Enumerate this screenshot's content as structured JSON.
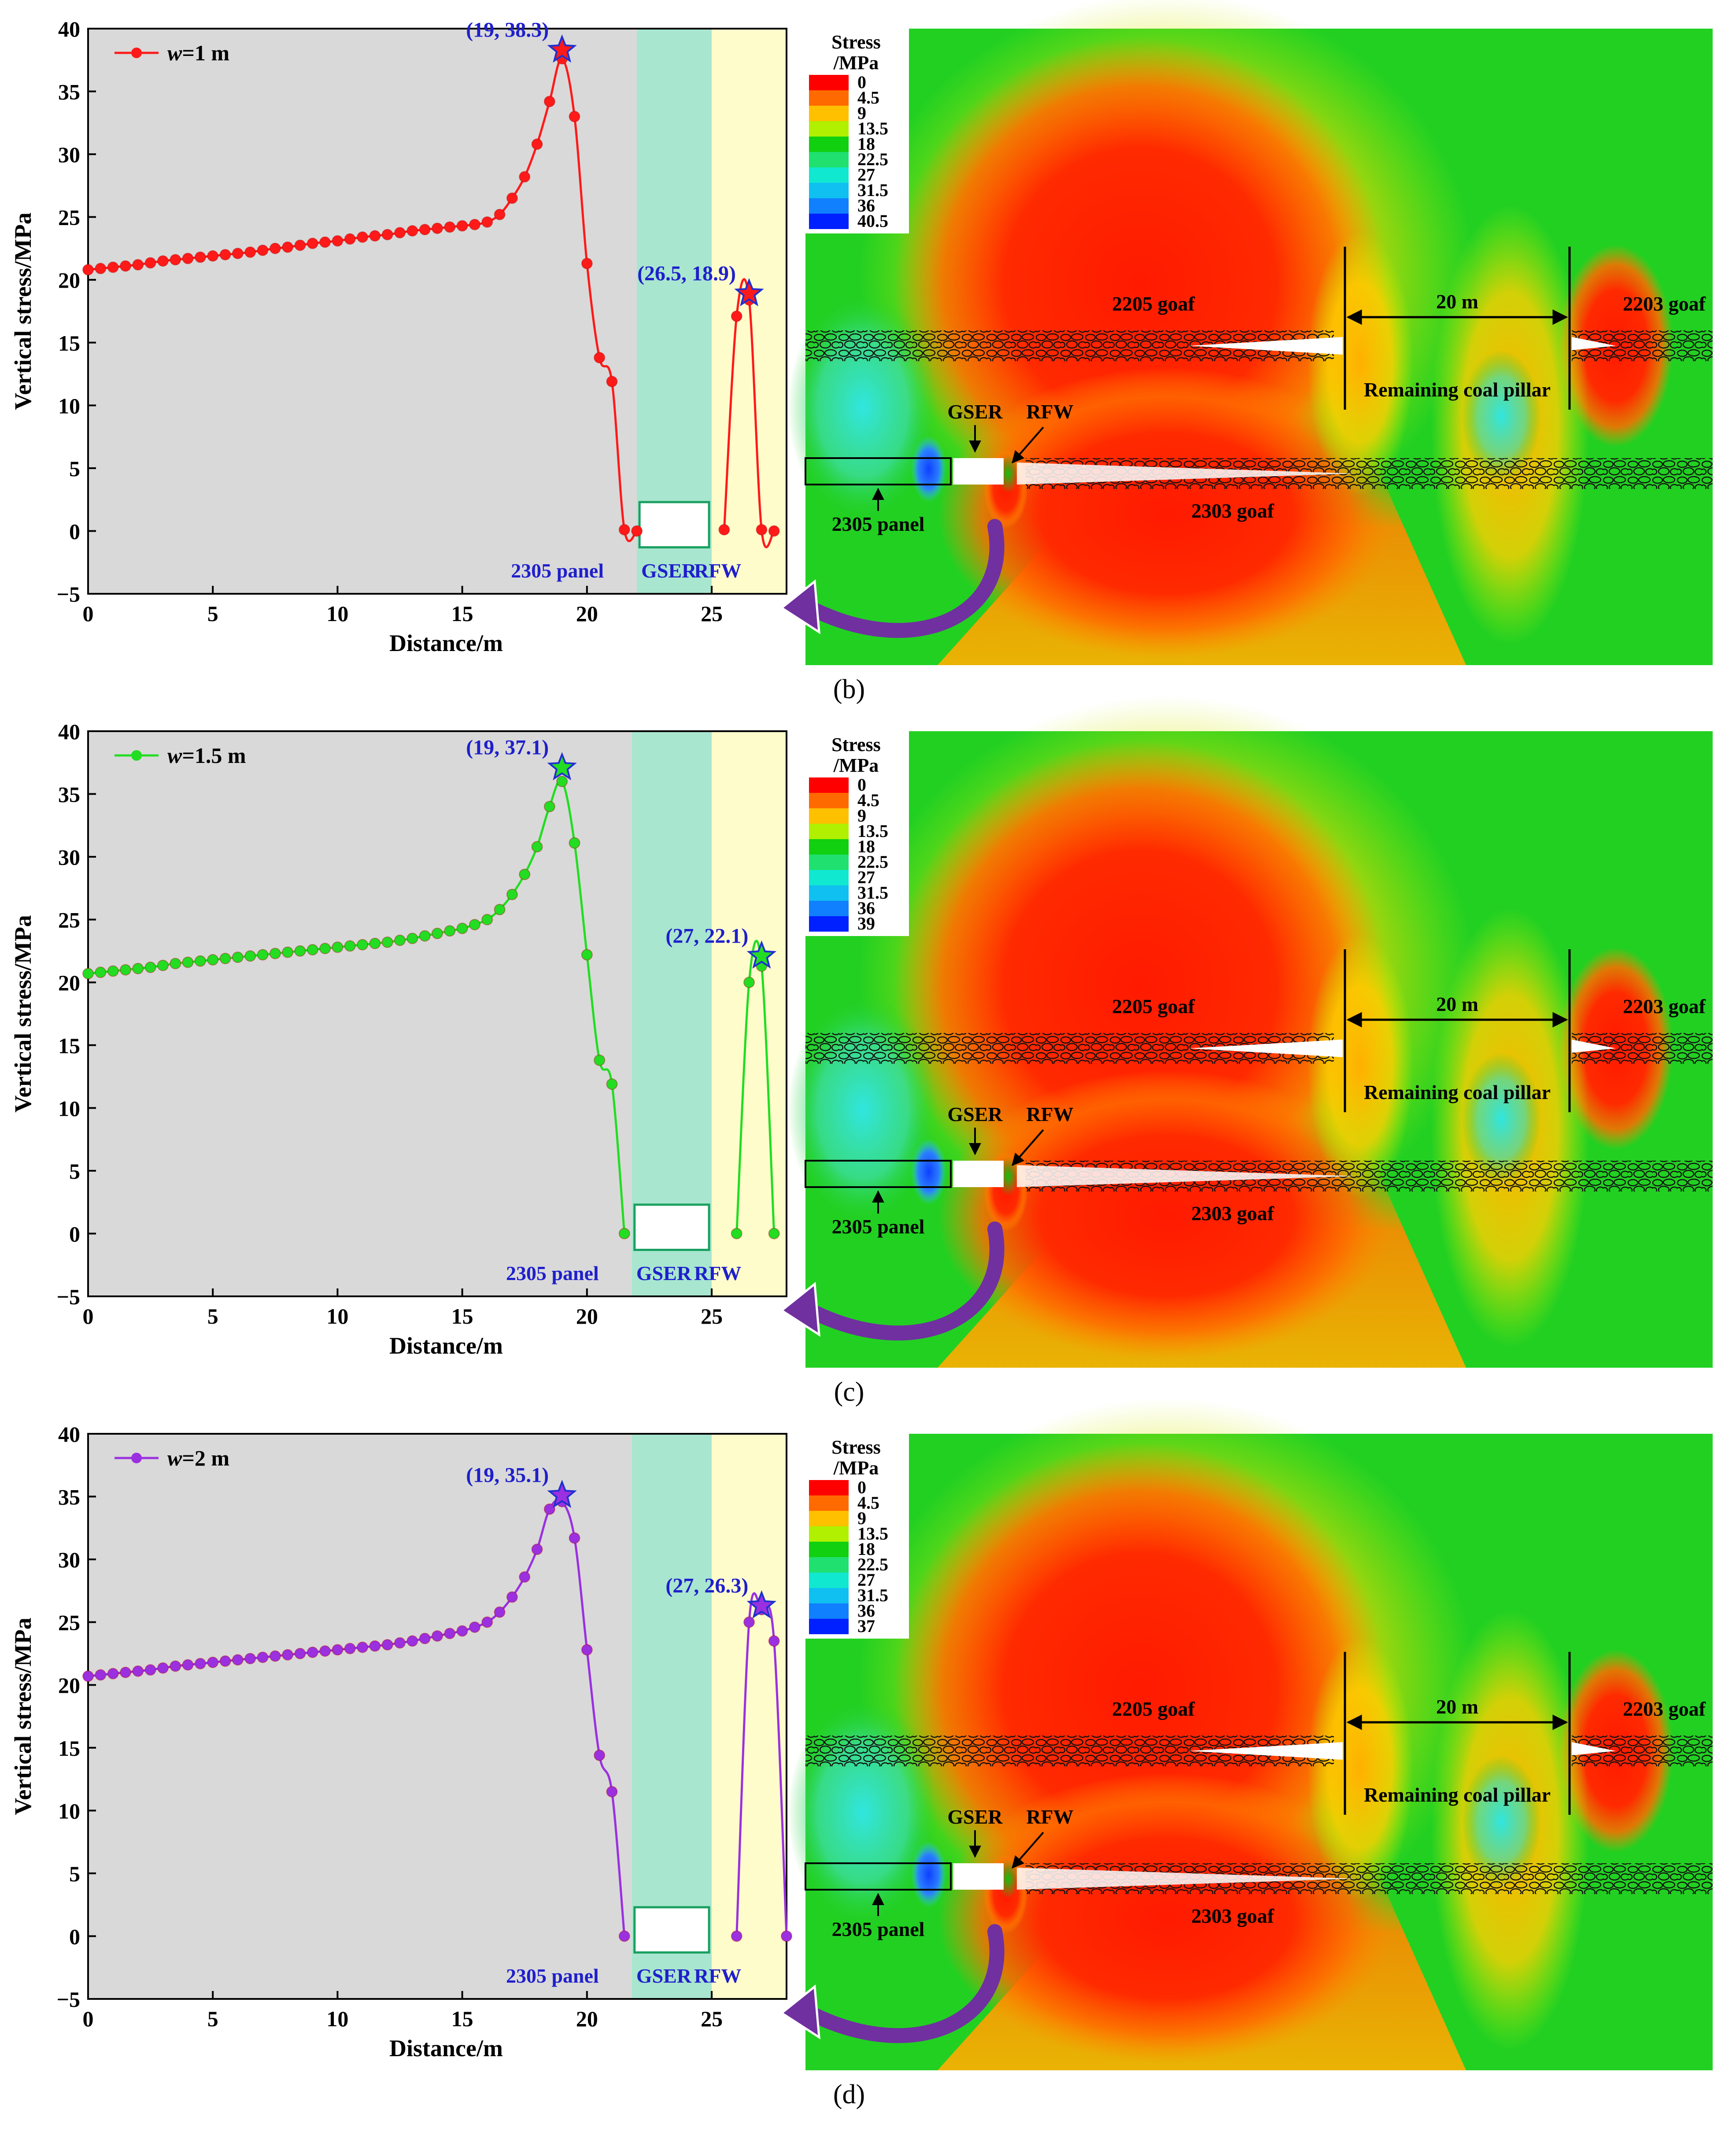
{
  "figure": {
    "ylabel": "Vertical stress/MPa",
    "xlabel": "Distance/m",
    "region_labels": {
      "panel": "2305 panel",
      "gser": "GSER",
      "rfw": "RFW"
    },
    "map_labels": {
      "stress_title_1": "Stress",
      "stress_title_2": "/MPa",
      "goaf_2205": "2205 goaf",
      "goaf_2203": "2203 goaf",
      "goaf_2303": "2303 goaf",
      "pillar_width": "20 m",
      "pillar": "Remaining coal pillar",
      "gser": "GSER",
      "rfw": "RFW",
      "panel": "2305 panel"
    }
  },
  "colors": {
    "gray_zone": "#d9d9d9",
    "gser_zone": "#a8e6cf",
    "rfw_zone": "#fffccc",
    "label_blue": "#1f1fcc",
    "arrow_purple": "#7030a0"
  },
  "chart_data": [
    {
      "type": "line",
      "panel_label": "(b)",
      "legend": "w=1 m",
      "legend_var": "w",
      "legend_rest": "=1 m",
      "color": "#ff1a1a",
      "xlim": [
        0,
        28
      ],
      "ylim": [
        -5,
        40
      ],
      "xticks": [
        0,
        5,
        10,
        15,
        20,
        25
      ],
      "yticks": [
        -5,
        0,
        5,
        10,
        15,
        20,
        25,
        30,
        35,
        40
      ],
      "zones": [
        [
          0,
          22
        ],
        [
          22,
          25
        ],
        [
          25,
          28
        ]
      ],
      "x": [
        0,
        0.5,
        1,
        1.5,
        2,
        2.5,
        3,
        3.5,
        4,
        4.5,
        5,
        5.5,
        6,
        6.5,
        7,
        7.5,
        8,
        8.5,
        9,
        9.5,
        10,
        10.5,
        11,
        11.5,
        12,
        12.5,
        13,
        13.5,
        14,
        14.5,
        15,
        15.5,
        16,
        16.5,
        17,
        17.5,
        18,
        18.5,
        19,
        19.5,
        20,
        20.5,
        21,
        21.5,
        22,
        25.5,
        26,
        26.5,
        27,
        27.5
      ],
      "y": [
        20.8,
        20.9,
        21.0,
        21.1,
        21.2,
        21.35,
        21.5,
        21.6,
        21.7,
        21.8,
        21.9,
        22.0,
        22.1,
        22.2,
        22.35,
        22.5,
        22.6,
        22.75,
        22.9,
        23.0,
        23.1,
        23.25,
        23.4,
        23.5,
        23.6,
        23.75,
        23.9,
        24.0,
        24.1,
        24.2,
        24.3,
        24.4,
        24.6,
        25.2,
        26.5,
        28.2,
        30.8,
        34.2,
        37.6,
        33.0,
        21.3,
        13.8,
        11.9,
        0.1,
        0.0,
        0.1,
        17.1,
        18.4,
        0.1,
        0.0
      ],
      "peaks": [
        {
          "label": "(19, 38.3)",
          "x": 19,
          "y": 38.3
        },
        {
          "label": "(26.5, 18.9)",
          "x": 26.5,
          "y": 18.9
        }
      ],
      "colorbar": [
        "0",
        "4.5",
        "9",
        "13.5",
        "18",
        "22.5",
        "27",
        "31.5",
        "36",
        "40.5"
      ]
    },
    {
      "type": "line",
      "panel_label": "(c)",
      "legend": "w=1.5 m",
      "legend_var": "w",
      "legend_rest": "=1.5 m",
      "color": "#22dd22",
      "xlim": [
        0,
        28
      ],
      "ylim": [
        -5,
        40
      ],
      "xticks": [
        0,
        5,
        10,
        15,
        20,
        25
      ],
      "yticks": [
        -5,
        0,
        5,
        10,
        15,
        20,
        25,
        30,
        35,
        40
      ],
      "zones": [
        [
          0,
          21.8
        ],
        [
          21.8,
          25
        ],
        [
          25,
          28
        ]
      ],
      "x": [
        0,
        0.5,
        1,
        1.5,
        2,
        2.5,
        3,
        3.5,
        4,
        4.5,
        5,
        5.5,
        6,
        6.5,
        7,
        7.5,
        8,
        8.5,
        9,
        9.5,
        10,
        10.5,
        11,
        11.5,
        12,
        12.5,
        13,
        13.5,
        14,
        14.5,
        15,
        15.5,
        16,
        16.5,
        17,
        17.5,
        18,
        18.5,
        19,
        19.5,
        20,
        20.5,
        21,
        21.5,
        26,
        26.5,
        27,
        27.5
      ],
      "y": [
        20.7,
        20.8,
        20.9,
        21.0,
        21.1,
        21.2,
        21.35,
        21.5,
        21.6,
        21.7,
        21.8,
        21.9,
        22.0,
        22.1,
        22.2,
        22.3,
        22.4,
        22.5,
        22.6,
        22.7,
        22.8,
        22.9,
        23.0,
        23.1,
        23.2,
        23.35,
        23.5,
        23.7,
        23.9,
        24.1,
        24.3,
        24.6,
        25.0,
        25.8,
        27.0,
        28.6,
        30.8,
        34.0,
        36.0,
        31.1,
        22.2,
        13.8,
        11.9,
        0.0,
        0.0,
        20.0,
        21.3,
        0.0
      ],
      "peaks": [
        {
          "label": "(19, 37.1)",
          "x": 19,
          "y": 37.1
        },
        {
          "label": "(27, 22.1)",
          "x": 27,
          "y": 22.1
        }
      ],
      "colorbar": [
        "0",
        "4.5",
        "9",
        "13.5",
        "18",
        "22.5",
        "27",
        "31.5",
        "36",
        "39"
      ]
    },
    {
      "type": "line",
      "panel_label": "(d)",
      "legend": "w=2 m",
      "legend_var": "w",
      "legend_rest": "=2 m",
      "color": "#9b30e0",
      "xlim": [
        0,
        28
      ],
      "ylim": [
        -5,
        40
      ],
      "xticks": [
        0,
        5,
        10,
        15,
        20,
        25
      ],
      "yticks": [
        -5,
        0,
        5,
        10,
        15,
        20,
        25,
        30,
        35,
        40
      ],
      "zones": [
        [
          0,
          21.8
        ],
        [
          21.8,
          25
        ],
        [
          25,
          28
        ]
      ],
      "x": [
        0,
        0.5,
        1,
        1.5,
        2,
        2.5,
        3,
        3.5,
        4,
        4.5,
        5,
        5.5,
        6,
        6.5,
        7,
        7.5,
        8,
        8.5,
        9,
        9.5,
        10,
        10.5,
        11,
        11.5,
        12,
        12.5,
        13,
        13.5,
        14,
        14.5,
        15,
        15.5,
        16,
        16.5,
        17,
        17.5,
        18,
        18.5,
        19,
        19.5,
        20,
        20.5,
        21,
        21.5,
        26,
        26.5,
        27,
        27.5,
        28
      ],
      "y": [
        20.7,
        20.8,
        20.9,
        21.0,
        21.1,
        21.2,
        21.35,
        21.5,
        21.6,
        21.7,
        21.8,
        21.9,
        22.0,
        22.1,
        22.2,
        22.3,
        22.4,
        22.5,
        22.6,
        22.7,
        22.8,
        22.9,
        23.0,
        23.1,
        23.2,
        23.35,
        23.5,
        23.7,
        23.9,
        24.1,
        24.3,
        24.6,
        25.0,
        25.8,
        27.0,
        28.6,
        30.8,
        34.0,
        34.6,
        31.7,
        22.8,
        14.4,
        11.5,
        0.0,
        0.0,
        25.0,
        26.0,
        23.5,
        0.0
      ],
      "peaks": [
        {
          "label": "(19, 35.1)",
          "x": 19,
          "y": 35.1
        },
        {
          "label": "(27, 26.3)",
          "x": 27,
          "y": 26.3
        }
      ],
      "colorbar": [
        "0",
        "4.5",
        "9",
        "13.5",
        "18",
        "22.5",
        "27",
        "31.5",
        "36",
        "37"
      ]
    }
  ]
}
